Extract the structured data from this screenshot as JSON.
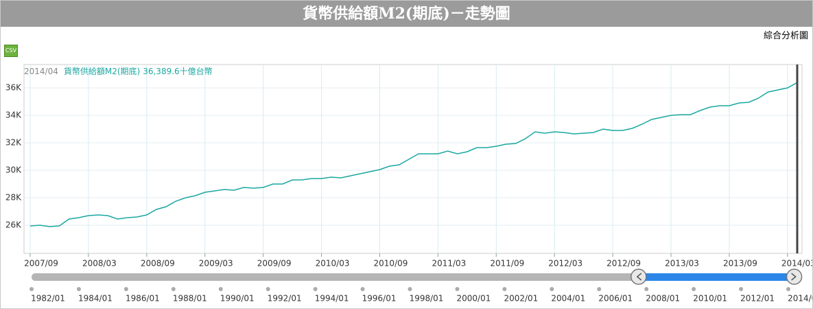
{
  "header": {
    "title": "貨幣供給額M2(期底)－走勢圖",
    "link": "綜合分析圖",
    "csv": "CSV"
  },
  "chart_data": {
    "type": "line",
    "categories": [
      "2007/09",
      null,
      null,
      null,
      null,
      null,
      "2008/03",
      null,
      null,
      null,
      null,
      null,
      "2008/09",
      null,
      null,
      null,
      null,
      null,
      "2009/03",
      null,
      null,
      null,
      null,
      null,
      "2009/09",
      null,
      null,
      null,
      null,
      null,
      "2010/03",
      null,
      null,
      null,
      null,
      null,
      "2010/09",
      null,
      null,
      null,
      null,
      null,
      "2011/03",
      null,
      null,
      null,
      null,
      null,
      "2011/09",
      null,
      null,
      null,
      null,
      null,
      "2012/03",
      null,
      null,
      null,
      null,
      null,
      "2012/09",
      null,
      null,
      null,
      null,
      null,
      "2013/03",
      null,
      null,
      null,
      null,
      null,
      "2013/09",
      null,
      null,
      null,
      null,
      null,
      "2014/03",
      null
    ],
    "series": [
      {
        "name": "貨幣供給額M2(期底)",
        "color": "#1aa7a1",
        "values": [
          25950,
          26000,
          25900,
          25950,
          26450,
          26550,
          26700,
          26750,
          26700,
          26450,
          26550,
          26600,
          26750,
          27150,
          27350,
          27750,
          28000,
          28150,
          28400,
          28500,
          28600,
          28550,
          28750,
          28700,
          28750,
          29000,
          29000,
          29300,
          29300,
          29400,
          29400,
          29500,
          29450,
          29600,
          29750,
          29900,
          30050,
          30300,
          30400,
          30800,
          31200,
          31200,
          31200,
          31400,
          31200,
          31350,
          31650,
          31650,
          31750,
          31900,
          31950,
          32300,
          32800,
          32700,
          32800,
          32750,
          32650,
          32700,
          32750,
          33000,
          32900,
          32900,
          33050,
          33350,
          33700,
          33850,
          34000,
          34050,
          34050,
          34350,
          34600,
          34700,
          34700,
          34900,
          34950,
          35250,
          35700,
          35850,
          36000,
          36389.6
        ]
      }
    ],
    "ylim": [
      23950,
      37700
    ],
    "yticks": [
      {
        "value": 26000,
        "label": "26K"
      },
      {
        "value": 28000,
        "label": "28K"
      },
      {
        "value": 30000,
        "label": "30K"
      },
      {
        "value": 32000,
        "label": "32K"
      },
      {
        "value": 34000,
        "label": "34K"
      },
      {
        "value": 36000,
        "label": "36K"
      }
    ],
    "grid": true,
    "tooltip": {
      "date": "2014/04",
      "value_label": "36,389.6",
      "unit": "十億台幣"
    },
    "navigator": {
      "xlim": [
        1982,
        2014.29
      ],
      "selection": [
        2007.67,
        2014.25
      ],
      "ticks": [
        {
          "value": 1982,
          "label": "1982/01"
        },
        {
          "value": 1984,
          "label": "1984/01"
        },
        {
          "value": 1986,
          "label": "1986/01"
        },
        {
          "value": 1988,
          "label": "1988/01"
        },
        {
          "value": 1990,
          "label": "1990/01"
        },
        {
          "value": 1992,
          "label": "1992/01"
        },
        {
          "value": 1994,
          "label": "1994/01"
        },
        {
          "value": 1996,
          "label": "1996/01"
        },
        {
          "value": 1998,
          "label": "1998/01"
        },
        {
          "value": 2000,
          "label": "2000/01"
        },
        {
          "value": 2002,
          "label": "2002/01"
        },
        {
          "value": 2004,
          "label": "2004/01"
        },
        {
          "value": 2006,
          "label": "2006/01"
        },
        {
          "value": 2008,
          "label": "2008/01"
        },
        {
          "value": 2010,
          "label": "2010/01"
        },
        {
          "value": 2012,
          "label": "2012/01"
        },
        {
          "value": 2014,
          "label": "2014/01"
        }
      ]
    }
  }
}
